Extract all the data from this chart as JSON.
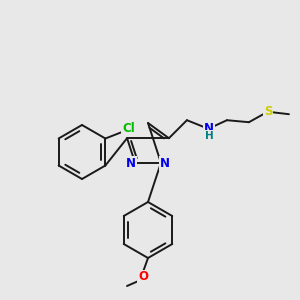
{
  "background_color": "#e8e8e8",
  "bond_color": "#1a1a1a",
  "atom_colors": {
    "N": "#0000ee",
    "O": "#ff0000",
    "Cl": "#00bb00",
    "S": "#cccc00",
    "NH_H": "#008080",
    "C": "#1a1a1a"
  },
  "figsize": [
    3.0,
    3.0
  ],
  "dpi": 100
}
